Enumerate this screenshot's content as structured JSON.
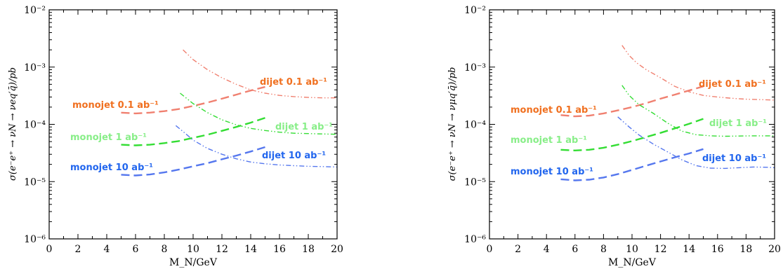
{
  "chart_data": [
    {
      "type": "line",
      "ylabel": "σ(e⁻e⁺ → νN → νeq′q̄)/pb",
      "xlabel": "M_N/GeV",
      "xlim": [
        0,
        20
      ],
      "ylim": [
        1e-06,
        0.01
      ],
      "yscale": "log",
      "x_ticks": [
        "0",
        "2",
        "4",
        "6",
        "8",
        "10",
        "12",
        "14",
        "16",
        "18",
        "20"
      ],
      "y_ticks": [
        "10⁻⁶",
        "10⁻⁵",
        "10⁻⁴",
        "10⁻³",
        "10⁻²"
      ],
      "grid": false,
      "series": [
        {
          "name": "monojet 0.1 ab⁻¹",
          "color": "#f08070",
          "style": "dashed",
          "label_color": "#f07020",
          "x": [
            5,
            6,
            7,
            8,
            9,
            10,
            11,
            12,
            13,
            14,
            15
          ],
          "y": [
            0.00016,
            0.000155,
            0.00016,
            0.00017,
            0.000185,
            0.00021,
            0.00024,
            0.00028,
            0.00033,
            0.00039,
            0.00045
          ]
        },
        {
          "name": "monojet 1 ab⁻¹",
          "color": "#33dd33",
          "style": "dashed",
          "label_color": "#88ee88",
          "x": [
            5,
            6,
            7,
            8,
            9,
            10,
            11,
            12,
            13,
            14,
            15
          ],
          "y": [
            4.4e-05,
            4.3e-05,
            4.4e-05,
            4.7e-05,
            5.1e-05,
            5.8e-05,
            6.6e-05,
            7.7e-05,
            9e-05,
            0.000107,
            0.00013
          ]
        },
        {
          "name": "monojet 10 ab⁻¹",
          "color": "#5577ee",
          "style": "dashed",
          "label_color": "#2266ee",
          "x": [
            5,
            6,
            7,
            8,
            9,
            10,
            11,
            12,
            13,
            14,
            15
          ],
          "y": [
            1.32e-05,
            1.28e-05,
            1.33e-05,
            1.45e-05,
            1.62e-05,
            1.85e-05,
            2.1e-05,
            2.45e-05,
            2.85e-05,
            3.35e-05,
            4e-05
          ]
        },
        {
          "name": "dijet 0.1 ab⁻¹",
          "color": "#f08070",
          "style": "dashdot",
          "label_color": "#f07020",
          "x": [
            9.3,
            10,
            11,
            12,
            13,
            14,
            15,
            16,
            17,
            18,
            19,
            20
          ],
          "y": [
            0.002,
            0.00135,
            0.0009,
            0.00065,
            0.0005,
            0.0004,
            0.00035,
            0.00032,
            0.000305,
            0.000295,
            0.00029,
            0.00029
          ]
        },
        {
          "name": "dijet 1 ab⁻¹",
          "color": "#33dd33",
          "style": "dashdot",
          "label_color": "#88ee88",
          "x": [
            9.1,
            10,
            11,
            12,
            13,
            14,
            15,
            16,
            17,
            18,
            19,
            20
          ],
          "y": [
            0.00035,
            0.00023,
            0.00016,
            0.00012,
            9.8e-05,
            8.5e-05,
            7.8e-05,
            7.3e-05,
            7e-05,
            6.9e-05,
            6.8e-05,
            6.7e-05
          ]
        },
        {
          "name": "dijet 10 ab⁻¹",
          "color": "#5577ee",
          "style": "dashdot",
          "label_color": "#2266ee",
          "x": [
            8.8,
            9.5,
            10,
            11,
            12,
            13,
            14,
            15,
            16,
            17,
            18,
            19,
            20
          ],
          "y": [
            9.5e-05,
            6.8e-05,
            5.3e-05,
            3.8e-05,
            3e-05,
            2.5e-05,
            2.2e-05,
            2.05e-05,
            1.95e-05,
            1.9e-05,
            1.85e-05,
            1.83e-05,
            1.8e-05
          ]
        }
      ]
    },
    {
      "type": "line",
      "ylabel": "σ(e⁻e⁺ → νN → νμq′q̄)/pb",
      "xlabel": "M_N/GeV",
      "xlim": [
        0,
        20
      ],
      "ylim": [
        1e-06,
        0.01
      ],
      "yscale": "log",
      "x_ticks": [
        "0",
        "2",
        "4",
        "6",
        "8",
        "10",
        "12",
        "14",
        "16",
        "18",
        "20"
      ],
      "y_ticks": [
        "10⁻⁶",
        "10⁻⁵",
        "10⁻⁴",
        "10⁻³",
        "10⁻²"
      ],
      "grid": false,
      "series": [
        {
          "name": "monojet 0.1 ab⁻¹",
          "color": "#f08070",
          "style": "dashed",
          "label_color": "#f07020",
          "x": [
            5,
            6,
            7,
            8,
            9,
            10,
            11,
            12,
            13,
            14,
            15
          ],
          "y": [
            0.000145,
            0.000138,
            0.000142,
            0.000155,
            0.000175,
            0.0002,
            0.000235,
            0.00028,
            0.00033,
            0.00039,
            0.00046
          ]
        },
        {
          "name": "monojet 1 ab⁻¹",
          "color": "#33dd33",
          "style": "dashed",
          "label_color": "#88ee88",
          "x": [
            5,
            6,
            7,
            8,
            9,
            10,
            11,
            12,
            13,
            14,
            15
          ],
          "y": [
            3.6e-05,
            3.5e-05,
            3.6e-05,
            3.9e-05,
            4.4e-05,
            5.1e-05,
            6e-05,
            7.1e-05,
            8.5e-05,
            0.000102,
            0.000125
          ]
        },
        {
          "name": "monojet 10 ab⁻¹",
          "color": "#5577ee",
          "style": "dashed",
          "label_color": "#2266ee",
          "x": [
            5,
            6,
            7,
            8,
            9,
            10,
            11,
            12,
            13,
            14,
            15
          ],
          "y": [
            1.1e-05,
            1.05e-05,
            1.08e-05,
            1.18e-05,
            1.35e-05,
            1.6e-05,
            1.9e-05,
            2.25e-05,
            2.65e-05,
            3.1e-05,
            3.7e-05
          ]
        },
        {
          "name": "dijet 0.1 ab⁻¹",
          "color": "#f08070",
          "style": "dashdot",
          "label_color": "#f07020",
          "x": [
            9.3,
            9.8,
            10.3,
            11,
            12,
            13,
            14,
            15,
            16,
            17,
            18,
            19,
            20
          ],
          "y": [
            0.0024,
            0.0016,
            0.0012,
            0.0009,
            0.00065,
            0.00046,
            0.00037,
            0.00032,
            0.0003,
            0.000285,
            0.000275,
            0.00027,
            0.000265
          ]
        },
        {
          "name": "dijet 1 ab⁻¹",
          "color": "#33dd33",
          "style": "dashdot",
          "label_color": "#88ee88",
          "x": [
            9.3,
            9.8,
            10.5,
            11.5,
            12.5,
            13.5,
            14.5,
            15.5,
            16.5,
            17.5,
            18.5,
            20
          ],
          "y": [
            0.00048,
            0.00032,
            0.00022,
            0.000155,
            0.000105,
            7.6e-05,
            6.6e-05,
            6.3e-05,
            6.2e-05,
            6.25e-05,
            6.3e-05,
            6.3e-05
          ]
        },
        {
          "name": "dijet 10 ab⁻¹",
          "color": "#5577ee",
          "style": "dashdot",
          "label_color": "#2266ee",
          "x": [
            9,
            9.8,
            10.5,
            11.5,
            12.5,
            13.5,
            14.5,
            15.5,
            16.5,
            17.5,
            18.5,
            19.5,
            20
          ],
          "y": [
            0.000135,
            9e-05,
            6.5e-05,
            4.5e-05,
            3.3e-05,
            2.4e-05,
            1.9e-05,
            1.72e-05,
            1.7e-05,
            1.75e-05,
            1.8e-05,
            1.78e-05,
            1.75e-05
          ]
        }
      ]
    }
  ]
}
